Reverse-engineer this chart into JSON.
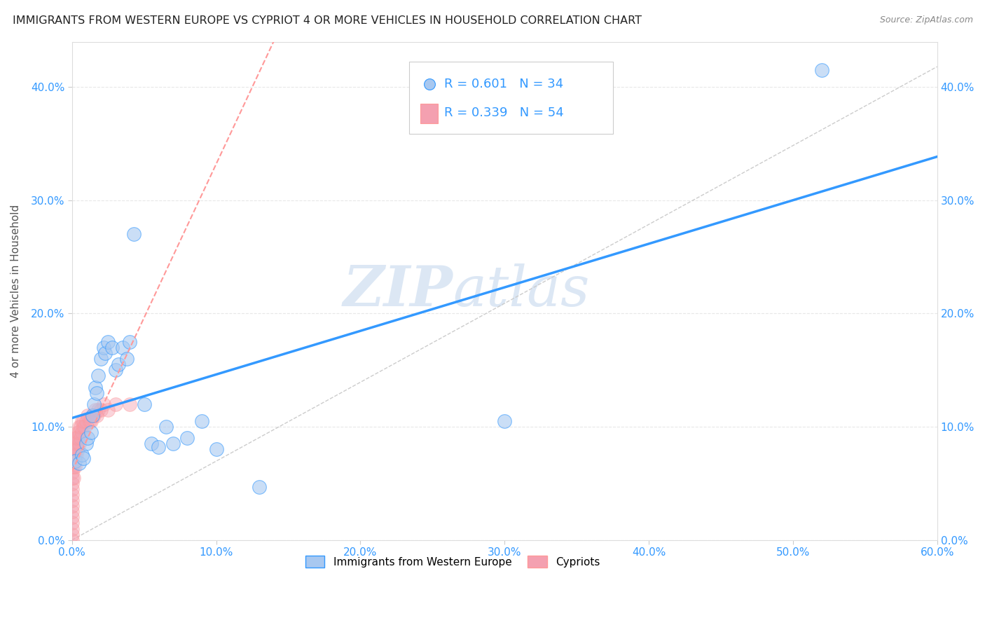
{
  "title": "IMMIGRANTS FROM WESTERN EUROPE VS CYPRIOT 4 OR MORE VEHICLES IN HOUSEHOLD CORRELATION CHART",
  "source": "Source: ZipAtlas.com",
  "xlabel": "",
  "ylabel": "4 or more Vehicles in Household",
  "legend_label_blue": "Immigrants from Western Europe",
  "legend_label_pink": "Cypriots",
  "r_blue": 0.601,
  "n_blue": 34,
  "r_pink": 0.339,
  "n_pink": 54,
  "blue_color": "#a8c8f0",
  "pink_color": "#f4a0b0",
  "blue_line_color": "#3399ff",
  "pink_line_color": "#ff9999",
  "xlim": [
    0.0,
    0.6
  ],
  "ylim": [
    0.0,
    0.44
  ],
  "xticks": [
    0.0,
    0.1,
    0.2,
    0.3,
    0.4,
    0.5,
    0.6
  ],
  "yticks": [
    0.0,
    0.1,
    0.2,
    0.3,
    0.4
  ],
  "blue_x": [
    0.002,
    0.005,
    0.007,
    0.008,
    0.01,
    0.011,
    0.013,
    0.014,
    0.015,
    0.016,
    0.017,
    0.018,
    0.02,
    0.022,
    0.023,
    0.025,
    0.028,
    0.03,
    0.032,
    0.035,
    0.038,
    0.04,
    0.043,
    0.05,
    0.055,
    0.06,
    0.065,
    0.07,
    0.08,
    0.09,
    0.1,
    0.13,
    0.3,
    0.52
  ],
  "blue_y": [
    0.07,
    0.068,
    0.075,
    0.072,
    0.085,
    0.09,
    0.095,
    0.11,
    0.12,
    0.135,
    0.13,
    0.145,
    0.16,
    0.17,
    0.165,
    0.175,
    0.17,
    0.15,
    0.155,
    0.17,
    0.16,
    0.175,
    0.27,
    0.12,
    0.085,
    0.082,
    0.1,
    0.085,
    0.09,
    0.105,
    0.08,
    0.047,
    0.105,
    0.415
  ],
  "pink_x": [
    0.0,
    0.0,
    0.0,
    0.0,
    0.0,
    0.0,
    0.0,
    0.0,
    0.0,
    0.0,
    0.0,
    0.0,
    0.0,
    0.0,
    0.0,
    0.001,
    0.001,
    0.001,
    0.001,
    0.001,
    0.002,
    0.002,
    0.002,
    0.002,
    0.003,
    0.003,
    0.003,
    0.004,
    0.004,
    0.004,
    0.005,
    0.005,
    0.005,
    0.006,
    0.006,
    0.007,
    0.007,
    0.008,
    0.008,
    0.009,
    0.01,
    0.011,
    0.012,
    0.013,
    0.014,
    0.015,
    0.016,
    0.017,
    0.018,
    0.02,
    0.022,
    0.025,
    0.03,
    0.04
  ],
  "pink_y": [
    0.0,
    0.005,
    0.01,
    0.015,
    0.02,
    0.025,
    0.03,
    0.035,
    0.04,
    0.045,
    0.05,
    0.055,
    0.06,
    0.065,
    0.07,
    0.055,
    0.065,
    0.075,
    0.08,
    0.085,
    0.065,
    0.075,
    0.08,
    0.09,
    0.075,
    0.085,
    0.09,
    0.08,
    0.09,
    0.095,
    0.085,
    0.095,
    0.1,
    0.09,
    0.1,
    0.095,
    0.105,
    0.1,
    0.105,
    0.1,
    0.105,
    0.11,
    0.105,
    0.105,
    0.11,
    0.11,
    0.115,
    0.11,
    0.115,
    0.115,
    0.12,
    0.115,
    0.12,
    0.12
  ],
  "watermark_zip": "ZIP",
  "watermark_atlas": "atlas",
  "background_color": "#ffffff",
  "grid_color": "#e8e8e8",
  "axis_color": "#3399ff",
  "title_color": "#222222",
  "source_color": "#888888"
}
